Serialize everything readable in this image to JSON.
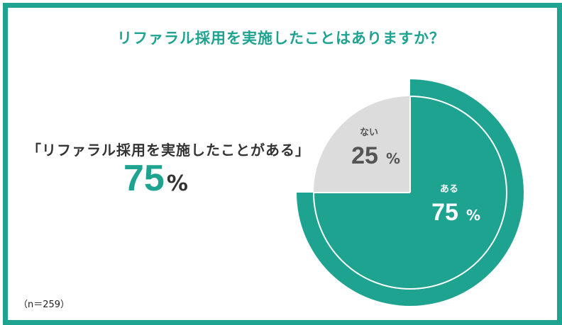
{
  "chart_data": {
    "type": "pie",
    "title": "リファラル採用を実施したことはありますか？",
    "slices": [
      {
        "label": "ある",
        "value": 75,
        "value_text": "75",
        "color": "#1fa391"
      },
      {
        "label": "ない",
        "value": 25,
        "value_text": "25",
        "color": "#dcdcdc"
      }
    ],
    "unit": "%",
    "note": "（n＝259）"
  },
  "callout": {
    "text": "「リファラル採用を実施したことがある」",
    "value": "75",
    "unit": "%"
  },
  "colors": {
    "accent": "#1fa391",
    "neutral": "#dcdcdc",
    "text": "#333333"
  }
}
